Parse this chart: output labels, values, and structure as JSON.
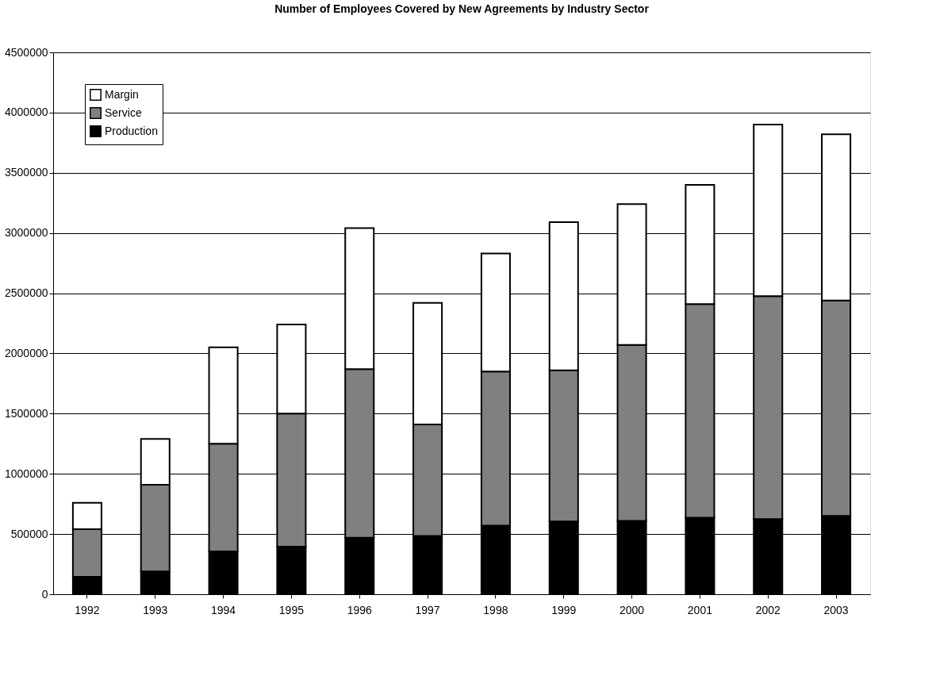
{
  "chart_data": {
    "type": "bar",
    "title": "Number of Employees Covered by New Agreements by Industry Sector",
    "categories": [
      "1992",
      "1993",
      "1994",
      "1995",
      "1996",
      "1997",
      "1998",
      "1999",
      "2000",
      "2001",
      "2002",
      "2003"
    ],
    "stacked": true,
    "series": [
      {
        "name": "Production",
        "color": "#000000",
        "values": [
          145000,
          190000,
          355000,
          395000,
          470000,
          485000,
          570000,
          605000,
          610000,
          635000,
          625000,
          650000
        ]
      },
      {
        "name": "Service",
        "color": "#808080",
        "values": [
          395000,
          720000,
          895000,
          1105000,
          1400000,
          925000,
          1280000,
          1255000,
          1460000,
          1775000,
          1850000,
          1790000
        ]
      },
      {
        "name": "Margin",
        "color": "#ffffff",
        "values": [
          220000,
          380000,
          800000,
          740000,
          1170000,
          1010000,
          980000,
          1230000,
          1170000,
          990000,
          1425000,
          1380000
        ]
      }
    ],
    "ylim": [
      0,
      4500000
    ],
    "yticks": [
      0,
      500000,
      1000000,
      1500000,
      2000000,
      2500000,
      3000000,
      3500000,
      4000000,
      4500000
    ],
    "grid": "y",
    "legend": "top left"
  }
}
